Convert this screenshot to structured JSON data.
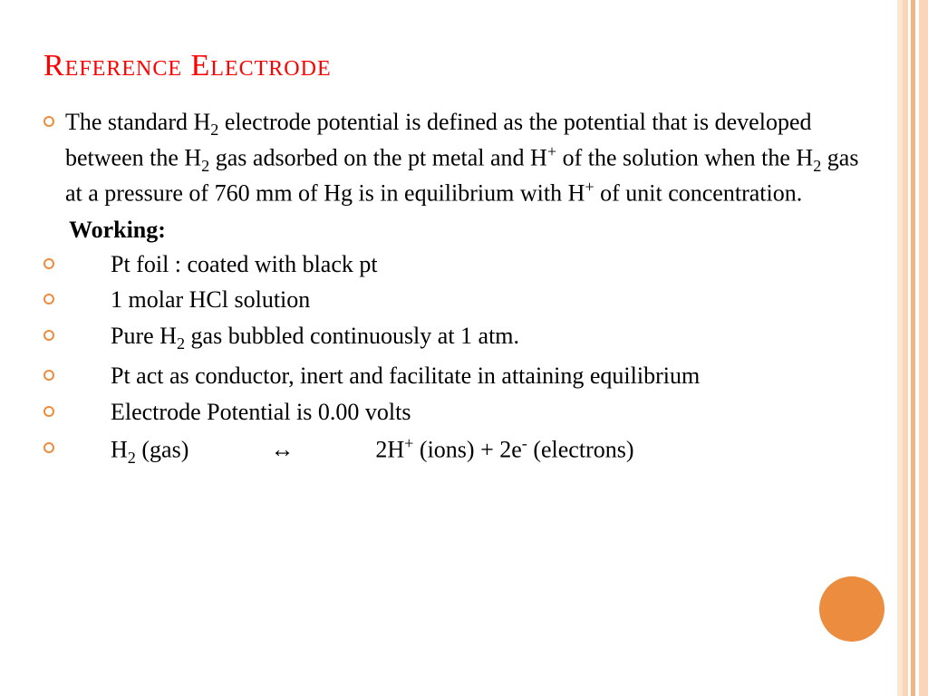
{
  "colors": {
    "title": "#ff0000",
    "bullet_ring": "#ec8c3f",
    "circle": "#ec8c3f",
    "stripe_outer": "#f9d6b8",
    "stripe_inner": "#f2b584",
    "stripe_left": "#fbe6d4",
    "text": "#000000",
    "background": "#ffffff"
  },
  "typography": {
    "title_fontsize": 34,
    "body_fontsize": 26,
    "font_family": "Georgia, serif"
  },
  "title": "Reference Electrode",
  "intro": {
    "pre1": "The standard H",
    "sub1": "2",
    "mid1": " electrode potential is defined as the potential that is developed between the H",
    "sub2": "2",
    "mid2": " gas adsorbed on the pt metal and H",
    "sup1": "+",
    "mid3": " of the solution when the H",
    "sub3": "2",
    "mid4": " gas at a pressure of 760 mm of Hg is in equilibrium with H",
    "sup2": "+",
    "post": " of unit concentration."
  },
  "working_label": "Working:",
  "items": {
    "i1": "Pt foil : coated with black pt",
    "i2": "1 molar HCl solution",
    "i3_pre": "Pure H",
    "i3_sub": "2",
    "i3_post": " gas bubbled continuously at 1 atm.",
    "i4": "Pt act as conductor, inert and facilitate in attaining equilibrium",
    "i5": "Electrode Potential is 0.00 volts",
    "i6_a": "H",
    "i6_sub1": "2",
    "i6_b": " (gas)",
    "i6_arrow": "↔",
    "i6_c": "2H",
    "i6_sup1": "+",
    "i6_d": " (ions)  + 2e",
    "i6_sup2": "-",
    "i6_e": " (electrons)"
  }
}
